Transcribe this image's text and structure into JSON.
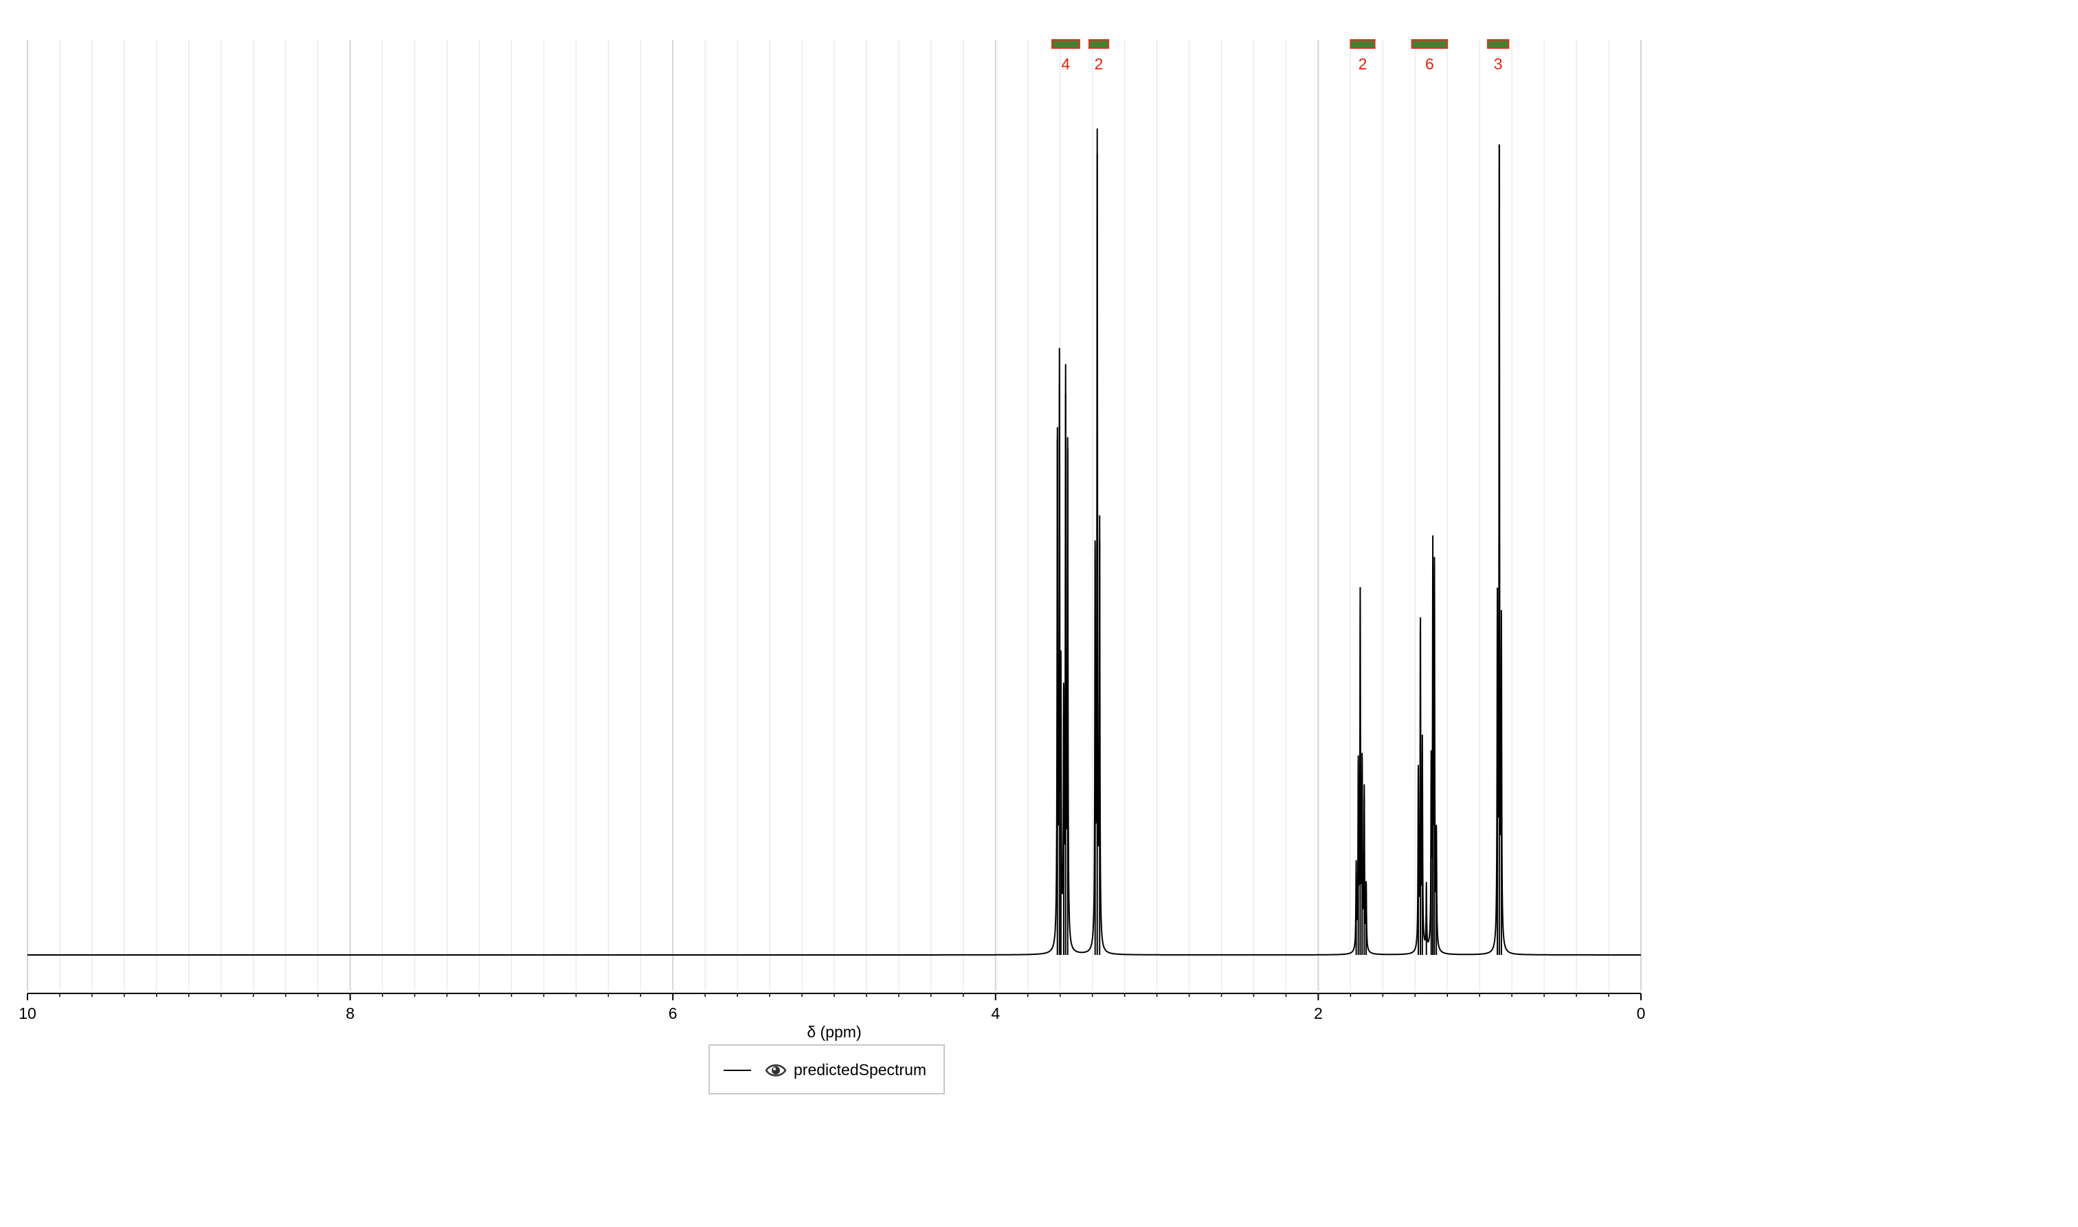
{
  "chart_data": {
    "type": "line",
    "title": "",
    "xlabel": "δ (ppm)",
    "ylabel": "",
    "xlim": [
      10,
      0
    ],
    "x_reversed": true,
    "x_ticks": [
      "10",
      "8",
      "6",
      "4",
      "2",
      "0"
    ],
    "y_axis_visible": false,
    "grid": true,
    "legend_placement": "bottom-center",
    "colors": {
      "line": "#000000",
      "integral_bar": "#4a7d32",
      "integral_border": "#d9361e",
      "integral_label": "#e8210c",
      "grid": "#e6e6e6",
      "axis": "#000000"
    },
    "integrals": [
      {
        "from": 3.65,
        "to": 3.48,
        "label": "4"
      },
      {
        "from": 3.42,
        "to": 3.3,
        "label": "2"
      },
      {
        "from": 1.8,
        "to": 1.65,
        "label": "2"
      },
      {
        "from": 1.42,
        "to": 1.2,
        "label": "6"
      },
      {
        "from": 0.95,
        "to": 0.82,
        "label": "3"
      }
    ],
    "series": [
      {
        "name": "predictedSpectrum",
        "peaks": [
          {
            "x": 3.617,
            "y": 0.56
          },
          {
            "x": 3.604,
            "y": 0.62
          },
          {
            "x": 3.595,
            "y": 0.27
          },
          {
            "x": 3.578,
            "y": 0.26
          },
          {
            "x": 3.566,
            "y": 0.61
          },
          {
            "x": 3.553,
            "y": 0.55
          },
          {
            "x": 3.383,
            "y": 0.43
          },
          {
            "x": 3.37,
            "y": 0.87
          },
          {
            "x": 3.355,
            "y": 0.45
          },
          {
            "x": 1.765,
            "y": 0.09
          },
          {
            "x": 1.752,
            "y": 0.2
          },
          {
            "x": 1.74,
            "y": 0.38
          },
          {
            "x": 1.728,
            "y": 0.2
          },
          {
            "x": 1.715,
            "y": 0.17
          },
          {
            "x": 1.703,
            "y": 0.07
          },
          {
            "x": 1.38,
            "y": 0.19
          },
          {
            "x": 1.367,
            "y": 0.36
          },
          {
            "x": 1.355,
            "y": 0.22
          },
          {
            "x": 1.33,
            "y": 0.07
          },
          {
            "x": 1.3,
            "y": 0.19
          },
          {
            "x": 1.29,
            "y": 0.42
          },
          {
            "x": 1.28,
            "y": 0.4
          },
          {
            "x": 1.268,
            "y": 0.12
          },
          {
            "x": 0.89,
            "y": 0.36
          },
          {
            "x": 0.878,
            "y": 0.88
          },
          {
            "x": 0.865,
            "y": 0.34
          }
        ]
      }
    ]
  },
  "legend": {
    "label": "predictedSpectrum",
    "icon": "eye-icon"
  }
}
